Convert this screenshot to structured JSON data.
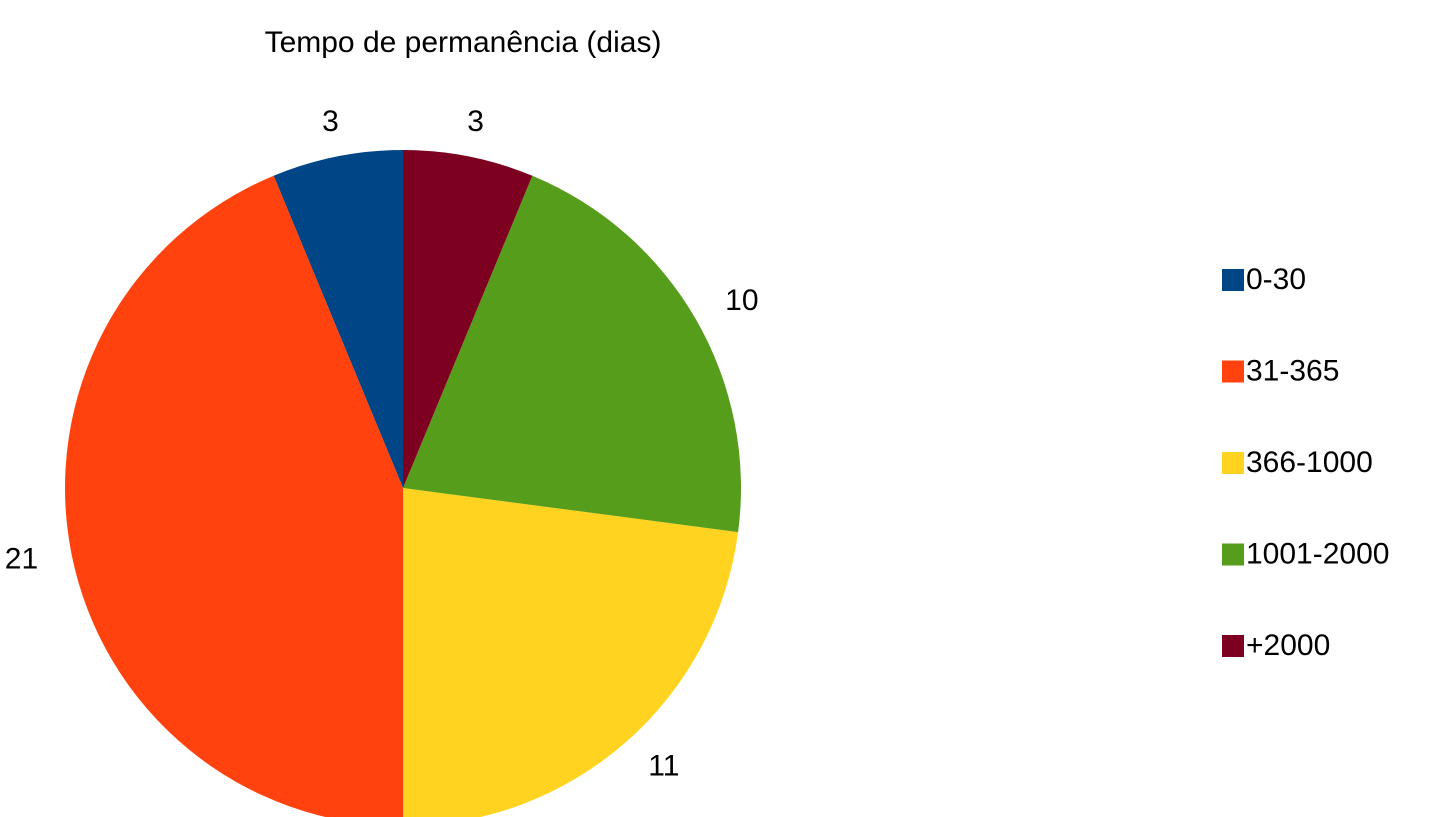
{
  "chart_data": {
    "type": "pie",
    "title": "Tempo de permanência (dias)",
    "categories": [
      "0-30",
      "31-365",
      "366-1000",
      "1001-2000",
      "+2000"
    ],
    "values": [
      3,
      21,
      11,
      10,
      3
    ],
    "colors": [
      "#004586",
      "#ff420e",
      "#ffd320",
      "#579d1c",
      "#7e0021"
    ],
    "legend": "right"
  }
}
